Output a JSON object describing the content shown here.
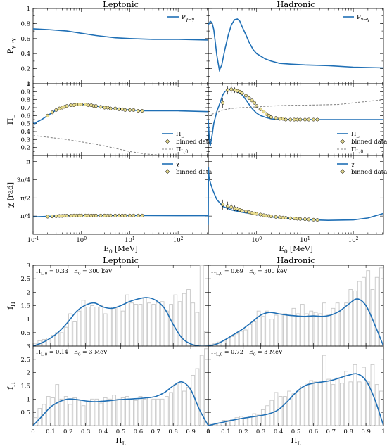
{
  "chart_data": [
    {
      "type": "line",
      "panel": "top-left",
      "title": "Leptonic",
      "ylabel": "P_{γ→γ}",
      "ylim": [
        0,
        1
      ],
      "xscale": "log",
      "xlim": [
        0.1,
        420
      ],
      "yticks": [
        "0",
        "0.2",
        "0.4",
        "0.6",
        "0.8",
        "1"
      ],
      "legend": "top-right",
      "series": [
        {
          "name": "P_{γ→γ}",
          "x": [
            0.1,
            0.2,
            0.5,
            1,
            2,
            5,
            10,
            30,
            100,
            420
          ],
          "y": [
            0.73,
            0.72,
            0.7,
            0.67,
            0.64,
            0.61,
            0.6,
            0.59,
            0.59,
            0.58
          ]
        }
      ]
    },
    {
      "type": "line",
      "panel": "top-right",
      "title": "Hadronic",
      "ylim": [
        0,
        1
      ],
      "xscale": "log",
      "xlim": [
        0.1,
        420
      ],
      "legend": "top-right",
      "series": [
        {
          "name": "P_{γ→γ}",
          "x": [
            0.1,
            0.11,
            0.12,
            0.13,
            0.14,
            0.15,
            0.17,
            0.19,
            0.22,
            0.26,
            0.3,
            0.35,
            0.4,
            0.45,
            0.5,
            0.6,
            0.7,
            0.85,
            1,
            1.5,
            2,
            3,
            5,
            10,
            30,
            100,
            420
          ],
          "y": [
            0.78,
            0.83,
            0.81,
            0.72,
            0.55,
            0.38,
            0.18,
            0.25,
            0.45,
            0.65,
            0.78,
            0.85,
            0.86,
            0.83,
            0.76,
            0.65,
            0.55,
            0.45,
            0.4,
            0.33,
            0.3,
            0.27,
            0.26,
            0.25,
            0.24,
            0.22,
            0.21
          ]
        }
      ]
    },
    {
      "type": "line",
      "panel": "middle-left",
      "ylabel": "Π_L",
      "ylim": [
        0.1,
        1
      ],
      "xscale": "log",
      "xlim": [
        0.1,
        420
      ],
      "yticks": [
        "0.2",
        "0.3",
        "0.4",
        "0.5",
        "0.6",
        "0.7",
        "0.8",
        "0.9",
        "1"
      ],
      "legend": "bottom-right",
      "series": [
        {
          "name": "Π_L",
          "x": [
            0.1,
            0.11,
            0.12,
            0.15,
            0.2,
            0.3,
            0.5,
            0.8,
            1,
            1.5,
            2,
            3,
            5,
            10,
            20,
            50,
            100,
            420
          ],
          "y": [
            0.52,
            0.5,
            0.52,
            0.55,
            0.6,
            0.67,
            0.72,
            0.74,
            0.74,
            0.73,
            0.72,
            0.7,
            0.69,
            0.67,
            0.66,
            0.66,
            0.66,
            0.65
          ]
        },
        {
          "name": "binned data",
          "x": [
            0.2,
            0.25,
            0.3,
            0.35,
            0.4,
            0.45,
            0.5,
            0.6,
            0.7,
            0.8,
            0.9,
            1,
            1.2,
            1.4,
            1.6,
            1.8,
            2,
            2.5,
            3,
            3.5,
            4,
            5,
            6,
            7,
            8,
            10,
            12,
            15,
            18
          ],
          "y": [
            0.6,
            0.64,
            0.67,
            0.69,
            0.7,
            0.71,
            0.72,
            0.73,
            0.73,
            0.74,
            0.74,
            0.74,
            0.74,
            0.73,
            0.73,
            0.72,
            0.72,
            0.71,
            0.7,
            0.7,
            0.69,
            0.69,
            0.68,
            0.68,
            0.67,
            0.67,
            0.67,
            0.66,
            0.66
          ]
        },
        {
          "name": "Π_{L,0}",
          "x": [
            0.1,
            0.2,
            0.5,
            1,
            2,
            3,
            5,
            10,
            20,
            50,
            100,
            420
          ],
          "y": [
            0.35,
            0.33,
            0.3,
            0.27,
            0.24,
            0.22,
            0.19,
            0.15,
            0.12,
            0.1,
            0.1,
            0.1
          ]
        }
      ]
    },
    {
      "type": "line",
      "panel": "middle-right",
      "ylim": [
        0.1,
        1
      ],
      "xscale": "log",
      "xlim": [
        0.1,
        420
      ],
      "legend": "bottom-right",
      "series": [
        {
          "name": "Π_L",
          "x": [
            0.1,
            0.105,
            0.11,
            0.12,
            0.13,
            0.15,
            0.18,
            0.2,
            0.22,
            0.25,
            0.3,
            0.35,
            0.4,
            0.5,
            0.6,
            0.7,
            0.8,
            1,
            1.2,
            1.5,
            2,
            3,
            5,
            10,
            30,
            100,
            420
          ],
          "y": [
            0.55,
            0.3,
            0.22,
            0.35,
            0.5,
            0.65,
            0.78,
            0.86,
            0.9,
            0.92,
            0.93,
            0.92,
            0.9,
            0.86,
            0.8,
            0.74,
            0.69,
            0.63,
            0.6,
            0.58,
            0.56,
            0.55,
            0.55,
            0.55,
            0.55,
            0.55,
            0.55
          ]
        },
        {
          "name": "binned data",
          "x": [
            0.2,
            0.25,
            0.3,
            0.35,
            0.4,
            0.45,
            0.5,
            0.6,
            0.7,
            0.8,
            0.9,
            1,
            1.2,
            1.4,
            1.6,
            1.8,
            2,
            2.5,
            3,
            3.5,
            4,
            5,
            6,
            7,
            8,
            10,
            12,
            15,
            18
          ],
          "y": [
            0.76,
            0.92,
            0.93,
            0.92,
            0.91,
            0.9,
            0.88,
            0.85,
            0.82,
            0.79,
            0.76,
            0.72,
            0.68,
            0.65,
            0.62,
            0.6,
            0.58,
            0.57,
            0.56,
            0.56,
            0.55,
            0.55,
            0.55,
            0.55,
            0.55,
            0.55,
            0.55,
            0.55,
            0.55
          ]
        },
        {
          "name": "Π_{L,0}",
          "x": [
            0.1,
            0.15,
            0.2,
            0.3,
            0.5,
            1,
            2,
            5,
            10,
            50,
            100,
            420
          ],
          "y": [
            0.6,
            0.64,
            0.67,
            0.69,
            0.7,
            0.71,
            0.72,
            0.73,
            0.73,
            0.74,
            0.76,
            0.8
          ]
        }
      ]
    },
    {
      "type": "line",
      "panel": "bottom-left",
      "ylabel": "χ [rad]",
      "xlabel": "E_0 [MeV]",
      "ylim": [
        0,
        3.4
      ],
      "xscale": "log",
      "xlim": [
        0.1,
        420
      ],
      "yticks": [
        "π/4",
        "π/2",
        "3π/4",
        "π"
      ],
      "xticks": [
        "10^{-1}",
        "10^{0}",
        "10^{1}",
        "10^{2}"
      ],
      "legend": "top-right",
      "series": [
        {
          "name": "χ",
          "x": [
            0.1,
            0.2,
            0.5,
            1,
            3,
            10,
            100,
            420
          ],
          "y": [
            0.75,
            0.77,
            0.8,
            0.81,
            0.81,
            0.81,
            0.8,
            0.8
          ]
        },
        {
          "name": "binned data",
          "x": [
            0.2,
            0.25,
            0.3,
            0.35,
            0.4,
            0.45,
            0.5,
            0.6,
            0.7,
            0.8,
            0.9,
            1,
            1.2,
            1.4,
            1.6,
            1.8,
            2,
            2.5,
            3,
            3.5,
            4,
            5,
            6,
            7,
            8,
            10,
            12,
            15,
            18
          ],
          "y": [
            0.76,
            0.77,
            0.78,
            0.79,
            0.79,
            0.8,
            0.8,
            0.8,
            0.81,
            0.81,
            0.81,
            0.81,
            0.81,
            0.81,
            0.81,
            0.81,
            0.81,
            0.81,
            0.81,
            0.81,
            0.81,
            0.81,
            0.81,
            0.81,
            0.81,
            0.81,
            0.81,
            0.81,
            0.81
          ]
        }
      ]
    },
    {
      "type": "line",
      "panel": "bottom-right",
      "xlabel": "E_0 [MeV]",
      "ylim": [
        0,
        3.4
      ],
      "xscale": "log",
      "xlim": [
        0.1,
        420
      ],
      "xticks": [
        "10^{0}",
        "10^{1}",
        "10^{2}"
      ],
      "legend": "top-right",
      "series": [
        {
          "name": "χ",
          "x": [
            0.1,
            0.101,
            0.102,
            0.104,
            0.108,
            0.115,
            0.13,
            0.15,
            0.2,
            0.3,
            0.5,
            1,
            2,
            5,
            10,
            30,
            100,
            200,
            420
          ],
          "y": [
            0.4,
            2.9,
            2.65,
            2.45,
            2.3,
            2.1,
            1.8,
            1.5,
            1.2,
            1.05,
            0.95,
            0.85,
            0.75,
            0.68,
            0.63,
            0.6,
            0.62,
            0.7,
            0.9
          ]
        },
        {
          "name": "binned data",
          "x": [
            0.2,
            0.25,
            0.3,
            0.35,
            0.4,
            0.45,
            0.5,
            0.6,
            0.7,
            0.8,
            0.9,
            1,
            1.2,
            1.4,
            1.6,
            1.8,
            2,
            2.5,
            3,
            3.5,
            4,
            5,
            6,
            7,
            8,
            10,
            12,
            15,
            18
          ],
          "y": [
            1.28,
            1.22,
            1.17,
            1.12,
            1.09,
            1.05,
            1.02,
            0.98,
            0.95,
            0.92,
            0.9,
            0.88,
            0.85,
            0.82,
            0.8,
            0.79,
            0.77,
            0.75,
            0.73,
            0.72,
            0.71,
            0.69,
            0.68,
            0.67,
            0.66,
            0.65,
            0.64,
            0.63,
            0.62
          ]
        }
      ]
    },
    {
      "type": "bar",
      "panel": "hist-top-left",
      "title": "Leptonic",
      "ylabel": "f_Π",
      "annotations": [
        "Π_{L,0} = 0.33",
        "E_0 = 300 keV"
      ],
      "ylim": [
        0,
        3
      ],
      "yticks": [
        "0.5",
        "1",
        "1.5",
        "2",
        "2.5",
        "3"
      ],
      "histogram": [
        0.1,
        0.2,
        0.25,
        0.3,
        0.4,
        0.5,
        0.5,
        0.7,
        1.2,
        0.9,
        1.3,
        1.7,
        1.45,
        1.5,
        1.45,
        1.5,
        1.2,
        1.45,
        1.4,
        1.45,
        1.3,
        1.9,
        1.6,
        1.55,
        1.55,
        1.8,
        1.6,
        1.55,
        1.6,
        1.65,
        1.3,
        1.55,
        1.9,
        1.65,
        1.95,
        2.1,
        1.6,
        1.25,
        3.0,
        0.55
      ],
      "curve_x": [
        0,
        0.05,
        0.1,
        0.15,
        0.2,
        0.25,
        0.3,
        0.35,
        0.4,
        0.45,
        0.5,
        0.55,
        0.6,
        0.65,
        0.7,
        0.75,
        0.8,
        0.85,
        0.9,
        0.95,
        1
      ],
      "curve_y": [
        0,
        0.12,
        0.3,
        0.55,
        0.9,
        1.3,
        1.52,
        1.6,
        1.45,
        1.4,
        1.5,
        1.65,
        1.75,
        1.8,
        1.7,
        1.4,
        0.8,
        0.3,
        0.08,
        0,
        0
      ]
    },
    {
      "type": "bar",
      "panel": "hist-top-right",
      "title": "Hadronic",
      "annotations": [
        "Π_{L,0} = 0.69",
        "E_0 = 300 keV"
      ],
      "ylim": [
        0,
        3
      ],
      "histogram": [
        0.05,
        0.1,
        0.15,
        0.2,
        0.3,
        0.35,
        0.45,
        0.55,
        0.6,
        0.8,
        0.9,
        1.3,
        1.1,
        1.3,
        1.0,
        1.15,
        1.2,
        1.2,
        1.15,
        1.4,
        1.2,
        1.55,
        1.2,
        1.3,
        1.25,
        1.2,
        1.6,
        1.15,
        1.4,
        1.6,
        1.35,
        1.6,
        2.1,
        2.05,
        2.4,
        2.55,
        2.8,
        2.1,
        2.55,
        2.9
      ],
      "curve_x": [
        0,
        0.05,
        0.1,
        0.15,
        0.2,
        0.25,
        0.3,
        0.35,
        0.4,
        0.45,
        0.5,
        0.55,
        0.6,
        0.65,
        0.7,
        0.75,
        0.8,
        0.85,
        0.9,
        0.95,
        1
      ],
      "curve_y": [
        0,
        0.08,
        0.25,
        0.45,
        0.65,
        0.9,
        1.15,
        1.25,
        1.2,
        1.15,
        1.12,
        1.1,
        1.12,
        1.1,
        1.15,
        1.3,
        1.55,
        1.75,
        1.5,
        0.8,
        0
      ]
    },
    {
      "type": "bar",
      "panel": "hist-bottom-left",
      "ylabel": "f_Π",
      "xlabel": "Π_L",
      "annotations": [
        "Π_{L,0} = 0.14",
        "E_0 = 3 MeV"
      ],
      "ylim": [
        0,
        3
      ],
      "xlim": [
        0,
        1
      ],
      "yticks": [
        "0.5",
        "1",
        "1.5",
        "2",
        "2.5",
        "3"
      ],
      "xticks": [
        "0",
        "0.1",
        "0.2",
        "0.3",
        "0.4",
        "0.5",
        "0.6",
        "0.7",
        "0.8",
        "0.9",
        "1"
      ],
      "histogram": [
        0.3,
        0.65,
        0.8,
        1.1,
        1.05,
        1.55,
        1.0,
        1.1,
        0.8,
        1.05,
        0.95,
        0.75,
        0.9,
        1.0,
        1.0,
        0.85,
        1.05,
        1.0,
        1.15,
        1.0,
        1.05,
        1.1,
        1.0,
        0.95,
        1.1,
        1.0,
        1.05,
        1.0,
        1.0,
        1.0,
        1.1,
        1.25,
        1.55,
        1.6,
        1.3,
        1.45,
        1.9,
        2.15,
        2.65,
        2.9
      ],
      "curve_x": [
        0,
        0.05,
        0.1,
        0.15,
        0.2,
        0.25,
        0.3,
        0.35,
        0.4,
        0.45,
        0.5,
        0.55,
        0.6,
        0.65,
        0.7,
        0.75,
        0.8,
        0.85,
        0.9,
        0.95,
        1
      ],
      "curve_y": [
        0,
        0.35,
        0.7,
        0.9,
        1.0,
        0.98,
        0.93,
        0.9,
        0.92,
        0.95,
        0.98,
        1.0,
        1.02,
        1.05,
        1.1,
        1.25,
        1.5,
        1.65,
        1.35,
        0.6,
        0
      ]
    },
    {
      "type": "bar",
      "panel": "hist-bottom-right",
      "xlabel": "Π_L",
      "annotations": [
        "Π_{L,0} = 0.72",
        "E_0 = 3 MeV"
      ],
      "ylim": [
        0,
        3
      ],
      "xlim": [
        0,
        1
      ],
      "xticks": [
        "0",
        "0.1",
        "0.2",
        "0.3",
        "0.4",
        "0.5",
        "0.6",
        "0.7",
        "0.8",
        "0.9",
        "1"
      ],
      "histogram": [
        0.05,
        0.05,
        0.1,
        0.2,
        0.2,
        0.25,
        0.3,
        0.35,
        0.3,
        0.35,
        0.45,
        0.4,
        0.6,
        0.75,
        0.95,
        1.25,
        1.1,
        1.1,
        1.3,
        1.2,
        1.3,
        1.5,
        1.6,
        1.7,
        1.65,
        1.6,
        2.65,
        1.75,
        1.55,
        1.8,
        1.6,
        2.05,
        1.65,
        2.3,
        1.65,
        2.2,
        1.65,
        2.3,
        1.55,
        1.3
      ],
      "curve_x": [
        0,
        0.05,
        0.1,
        0.15,
        0.2,
        0.25,
        0.3,
        0.35,
        0.4,
        0.45,
        0.5,
        0.55,
        0.6,
        0.65,
        0.7,
        0.75,
        0.8,
        0.85,
        0.9,
        0.95,
        1
      ],
      "curve_y": [
        0,
        0.08,
        0.15,
        0.22,
        0.28,
        0.33,
        0.38,
        0.45,
        0.6,
        0.9,
        1.25,
        1.5,
        1.6,
        1.65,
        1.7,
        1.8,
        1.9,
        1.95,
        1.7,
        1.0,
        0
      ]
    }
  ]
}
